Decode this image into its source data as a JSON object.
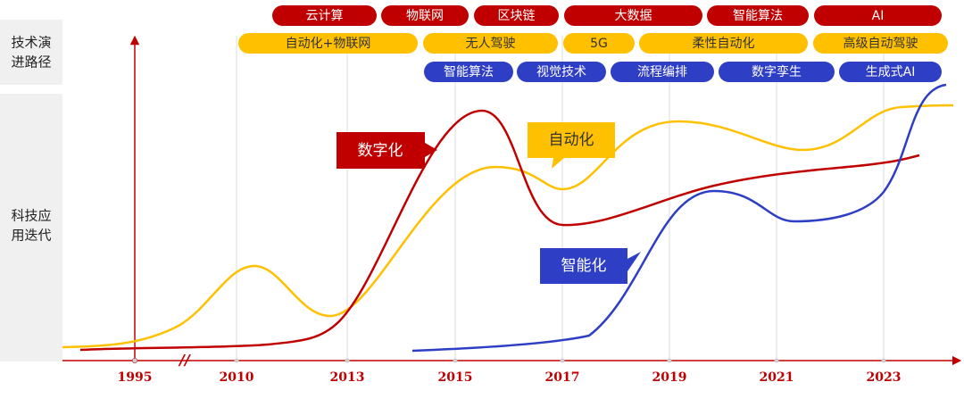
{
  "side_labels": [
    [
      "技术演",
      "进路径"
    ],
    [
      "科技应",
      "用迭代"
    ]
  ],
  "tech_rows": [
    [
      "云计算",
      "物联网",
      "区块链",
      "大数据",
      "智能算法",
      "AI"
    ],
    [
      "自动化+物联网",
      "无人驾驶",
      "5G",
      "柔性自动化",
      "高级自动驾驶"
    ],
    [
      "智能算法",
      "视觉技术",
      "流程编排",
      "数字孪生",
      "生成式AI"
    ]
  ],
  "years": [
    "1995",
    "2010",
    "2013",
    "2015",
    "2017",
    "2019",
    "2021",
    "2023"
  ],
  "curve_labels": [
    "数字化",
    "自动化",
    "智能化"
  ]
}
